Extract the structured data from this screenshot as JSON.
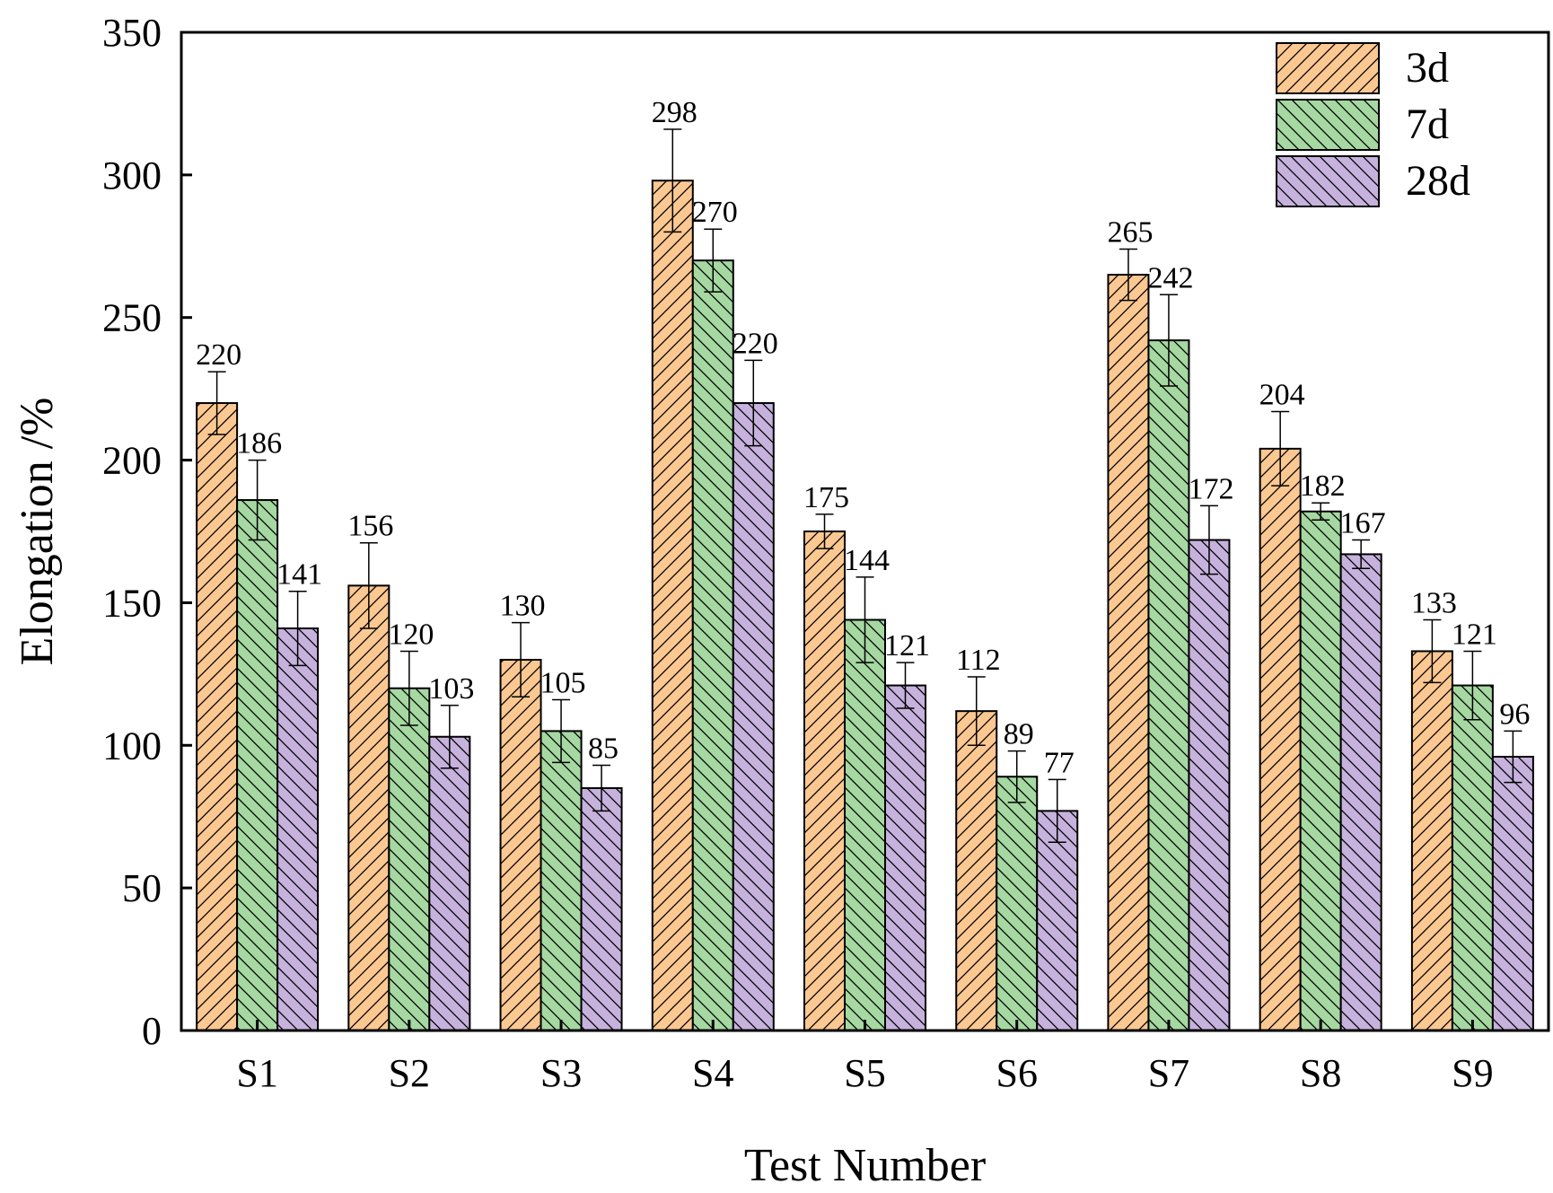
{
  "chart_data": {
    "type": "bar",
    "xlabel": "Test Number",
    "ylabel": "Elongation /%",
    "ylim": [
      0,
      350
    ],
    "yticks": [
      0,
      50,
      100,
      150,
      200,
      250,
      300,
      350
    ],
    "categories": [
      "S1",
      "S2",
      "S3",
      "S4",
      "S5",
      "S6",
      "S7",
      "S8",
      "S9"
    ],
    "series": [
      {
        "name": "3d",
        "color": "#FCC892",
        "hatch": "forward-diagonal",
        "values": [
          220,
          156,
          130,
          298,
          175,
          112,
          265,
          204,
          133
        ],
        "errors": [
          11,
          15,
          13,
          18,
          6,
          12,
          9,
          13,
          11
        ]
      },
      {
        "name": "7d",
        "color": "#A6D8A2",
        "hatch": "backward-diagonal",
        "values": [
          186,
          120,
          105,
          270,
          144,
          89,
          242,
          182,
          121
        ],
        "errors": [
          14,
          13,
          11,
          11,
          15,
          9,
          16,
          3,
          12
        ]
      },
      {
        "name": "28d",
        "color": "#C6B2DD",
        "hatch": "backward-diagonal",
        "values": [
          141,
          103,
          85,
          220,
          121,
          77,
          172,
          167,
          96
        ],
        "errors": [
          13,
          11,
          8,
          15,
          8,
          11,
          12,
          5,
          9
        ]
      }
    ],
    "data_labels": true,
    "legend_position": "top-right",
    "grid": false
  }
}
